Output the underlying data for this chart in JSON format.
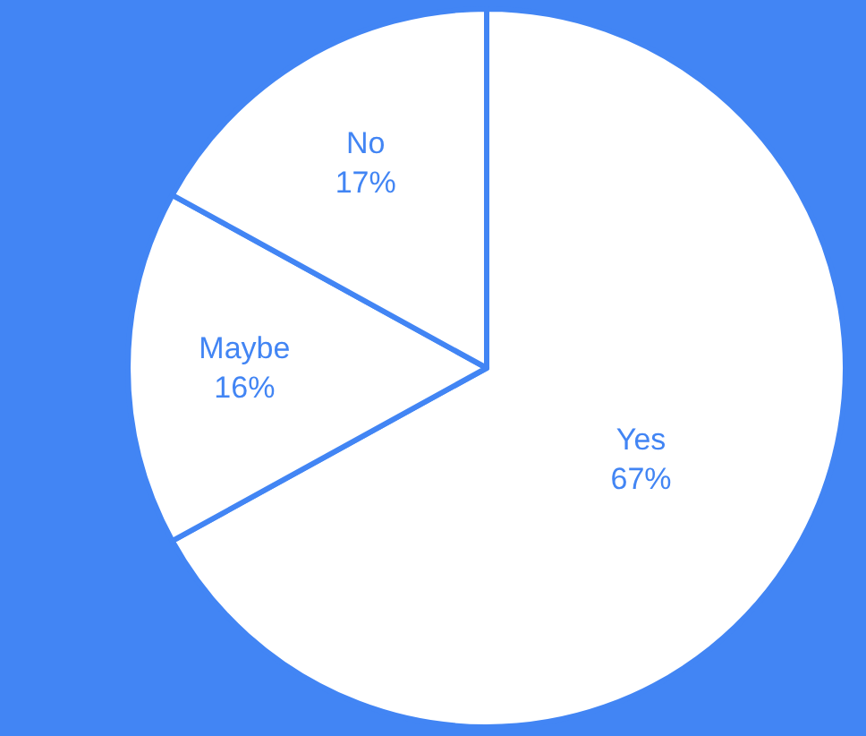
{
  "chart_data": {
    "type": "pie",
    "categories": [
      "Yes",
      "Maybe",
      "No"
    ],
    "values": [
      67,
      16,
      17
    ],
    "colors": [
      "#ffffff",
      "#ffffff",
      "#ffffff"
    ],
    "value_labels": [
      "67%",
      "16%",
      "17%"
    ],
    "legend": false
  }
}
